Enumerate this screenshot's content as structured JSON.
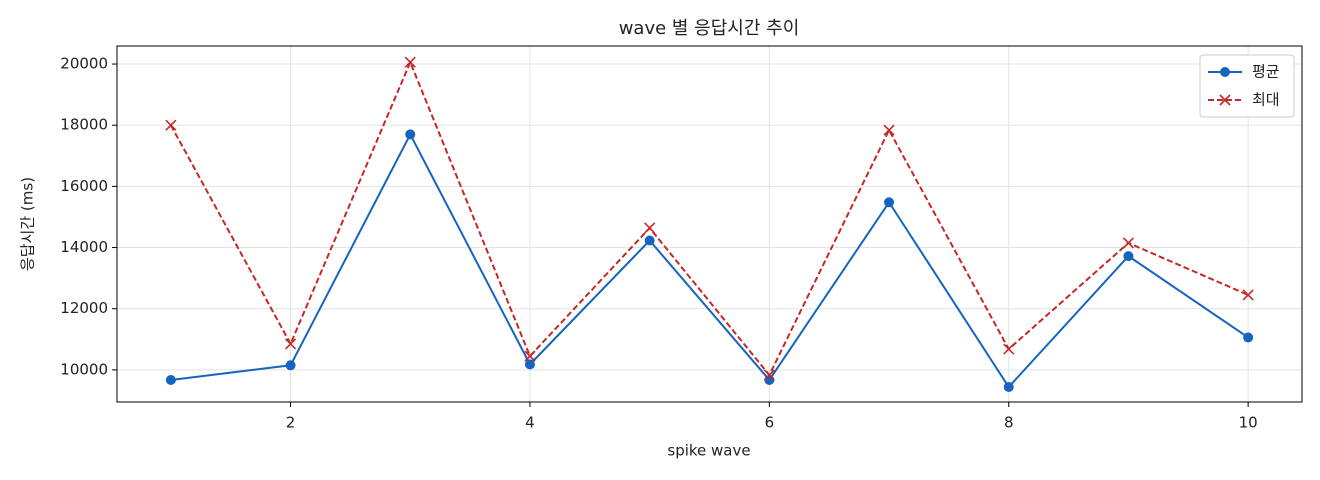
{
  "chart_data": {
    "type": "line",
    "title": "wave 별 응답시간 추이",
    "xlabel": "spike wave",
    "ylabel": "응답시간 (ms)",
    "x": [
      1,
      2,
      3,
      4,
      5,
      6,
      7,
      8,
      9,
      10
    ],
    "series": [
      {
        "name": "평균",
        "color": "#1565c0",
        "marker": "o",
        "linestyle": "solid",
        "values": [
          9670,
          10150,
          17700,
          10180,
          14230,
          9670,
          15480,
          9440,
          13720,
          11060
        ]
      },
      {
        "name": "최대",
        "color": "#c62828",
        "marker": "x",
        "linestyle": "dashed",
        "values": [
          18000,
          10850,
          20060,
          10450,
          14640,
          9830,
          17840,
          10680,
          14150,
          12450
        ]
      }
    ],
    "xlim": [
      0.55,
      10.45
    ],
    "ylim": [
      8950,
      20590
    ],
    "xticks": [
      2,
      4,
      6,
      8,
      10
    ],
    "yticks": [
      10000,
      12000,
      14000,
      16000,
      18000,
      20000
    ],
    "grid": true,
    "legend": "upper right"
  }
}
